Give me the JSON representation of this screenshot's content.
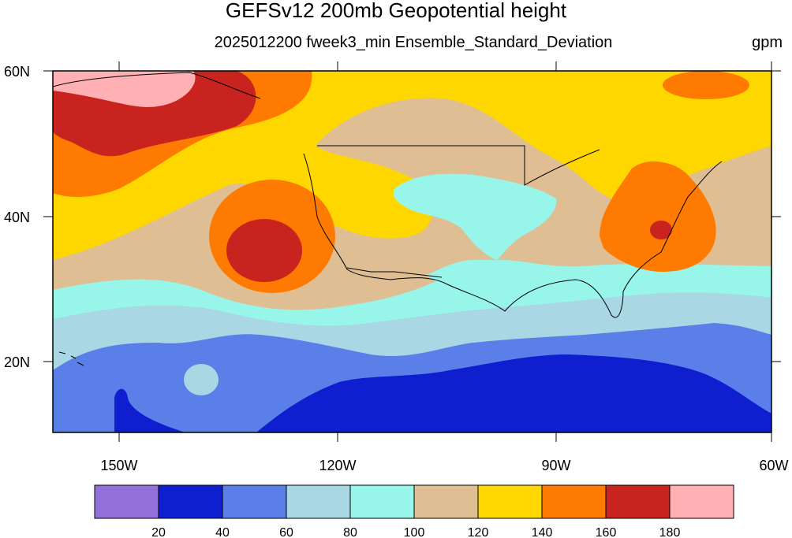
{
  "title": "GEFSv12 200mb Geopotential height",
  "subtitle": "2025012200 fweek3_min Ensemble_Standard_Deviation",
  "units": "gpm",
  "map": {
    "lon_labels": [
      "150W",
      "120W",
      "90W",
      "60W"
    ],
    "lat_labels": [
      "20N",
      "40N",
      "60N"
    ],
    "lon_range": [
      -160,
      -60
    ],
    "lat_range": [
      10,
      60
    ]
  },
  "colorbar": {
    "colors": [
      "#9370db",
      "#0f1fd0",
      "#5b7fe8",
      "#a9d7e4",
      "#98f5ea",
      "#dfbe94",
      "#ffd700",
      "#ff7a00",
      "#c8231e",
      "#ffb0b4"
    ],
    "labels": [
      "20",
      "40",
      "60",
      "80",
      "100",
      "120",
      "140",
      "160",
      "180"
    ]
  },
  "colors": {
    "c20_40": "#0f1fd0",
    "c40_60": "#5b7fe8",
    "c60_80": "#a9d7e4",
    "c80_100": "#98f5ea",
    "c100_120": "#dfbe94",
    "c120_140": "#ffd700",
    "c140_160": "#ff7a00",
    "c160_180": "#c8231e",
    "c180_plus": "#ffb0b4"
  }
}
